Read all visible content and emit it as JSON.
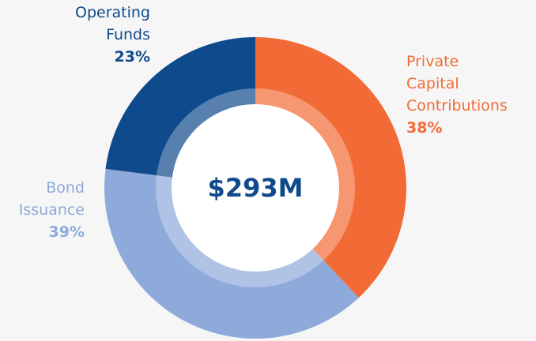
{
  "chart_data": {
    "type": "donut",
    "categories": [
      "Private Capital Contributions",
      "Bond Issuance",
      "Operating Funds"
    ],
    "values": [
      38,
      39,
      23
    ],
    "value_labels": [
      "38%",
      "39%",
      "23%"
    ],
    "colors": [
      "#f26b36",
      "#8eaadb",
      "#0f4a8c"
    ],
    "center_label": "$293M"
  }
}
